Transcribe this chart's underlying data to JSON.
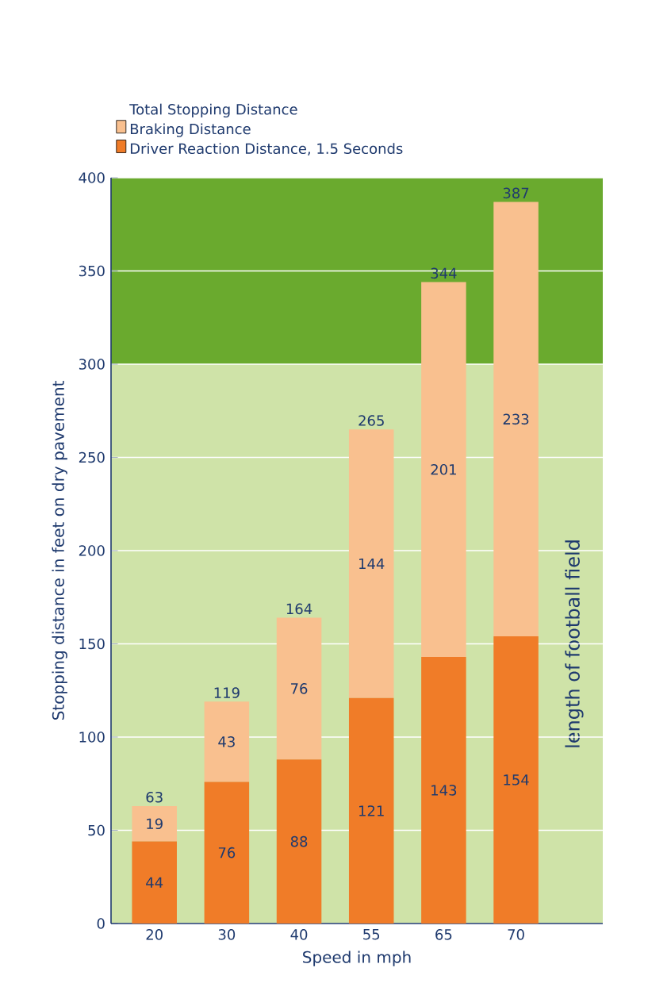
{
  "chart_data": {
    "type": "bar",
    "stacked": true,
    "legend_title": "Total Stopping Distance",
    "xlabel": "Speed in mph",
    "ylabel": "Stopping distance in feet on dry pavement",
    "categories": [
      "20",
      "30",
      "40",
      "55",
      "65",
      "70"
    ],
    "series": [
      {
        "name": "Driver Reaction Distance, 1.5 Seconds",
        "color": "#f07c28",
        "values": [
          44,
          76,
          88,
          121,
          143,
          154
        ]
      },
      {
        "name": "Braking Distance",
        "color": "#f9c08f",
        "values": [
          19,
          43,
          76,
          144,
          201,
          233
        ]
      }
    ],
    "totals": [
      "63",
      "119",
      "164",
      "265",
      "344",
      "387"
    ],
    "data_labels": true,
    "ylim": [
      0,
      400
    ],
    "yticks": [
      0,
      50,
      100,
      150,
      200,
      250,
      300,
      350,
      400
    ],
    "grid": "y",
    "legend": "top left",
    "bands": [
      {
        "axis": "y",
        "from": 0,
        "to": 300,
        "label": "length of football field",
        "color": "#cfe3a8"
      },
      {
        "axis": "y",
        "from": 300,
        "to": 400,
        "color": "#6aaa2e"
      }
    ]
  }
}
